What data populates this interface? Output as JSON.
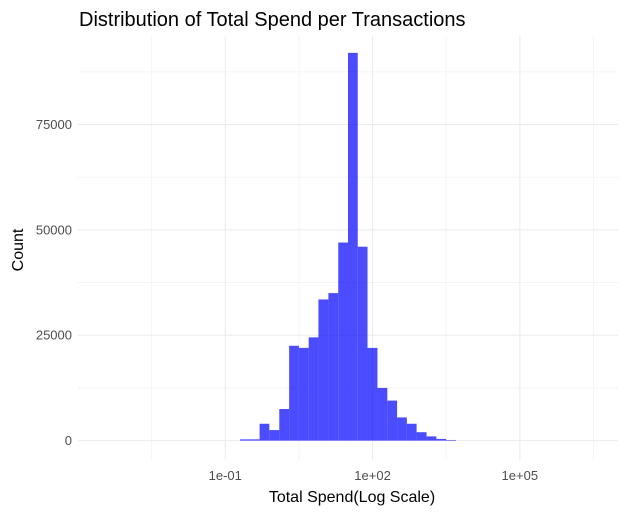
{
  "chart_data": {
    "type": "bar",
    "title": "Distribution of Total Spend per Transactions",
    "xlabel": "Total Spend(Log Scale)",
    "ylabel": "Count",
    "x_scale": "log10",
    "xlim": [
      0.0001,
      10000000
    ],
    "ylim": [
      -4600,
      96000
    ],
    "x_ticks": [
      {
        "value": 0.1,
        "label": "1e-01"
      },
      {
        "value": 100,
        "label": "1e+02"
      },
      {
        "value": 100000,
        "label": "1e+05"
      }
    ],
    "y_ticks": [
      {
        "value": 0,
        "label": "0"
      },
      {
        "value": 25000,
        "label": "25000"
      },
      {
        "value": 50000,
        "label": "50000"
      },
      {
        "value": 75000,
        "label": "75000"
      }
    ],
    "grid": true,
    "bar_color": "#0000FF",
    "bar_opacity": 0.7,
    "bins": [
      {
        "x_from": 0.2,
        "x_to": 0.32,
        "count": 300
      },
      {
        "x_from": 0.32,
        "x_to": 0.5,
        "count": 300
      },
      {
        "x_from": 0.5,
        "x_to": 0.79,
        "count": 4000
      },
      {
        "x_from": 0.79,
        "x_to": 1.26,
        "count": 2500
      },
      {
        "x_from": 1.26,
        "x_to": 2.0,
        "count": 7500
      },
      {
        "x_from": 2.0,
        "x_to": 3.16,
        "count": 22500
      },
      {
        "x_from": 3.16,
        "x_to": 5.0,
        "count": 22000
      },
      {
        "x_from": 5.0,
        "x_to": 7.9,
        "count": 24500
      },
      {
        "x_from": 7.9,
        "x_to": 12.6,
        "count": 33500
      },
      {
        "x_from": 12.6,
        "x_to": 20.0,
        "count": 35000
      },
      {
        "x_from": 20.0,
        "x_to": 31.6,
        "count": 47000
      },
      {
        "x_from": 31.6,
        "x_to": 50.0,
        "count": 92000
      },
      {
        "x_from": 50.0,
        "x_to": 79.0,
        "count": 46000
      },
      {
        "x_from": 79.0,
        "x_to": 126,
        "count": 22000
      },
      {
        "x_from": 126,
        "x_to": 200,
        "count": 12500
      },
      {
        "x_from": 200,
        "x_to": 316,
        "count": 9500
      },
      {
        "x_from": 316,
        "x_to": 500,
        "count": 5500
      },
      {
        "x_from": 500,
        "x_to": 790,
        "count": 4000
      },
      {
        "x_from": 790,
        "x_to": 1260,
        "count": 2000
      },
      {
        "x_from": 1260,
        "x_to": 2000,
        "count": 1000
      },
      {
        "x_from": 2000,
        "x_to": 3160,
        "count": 400
      },
      {
        "x_from": 3160,
        "x_to": 5000,
        "count": 150
      }
    ]
  }
}
